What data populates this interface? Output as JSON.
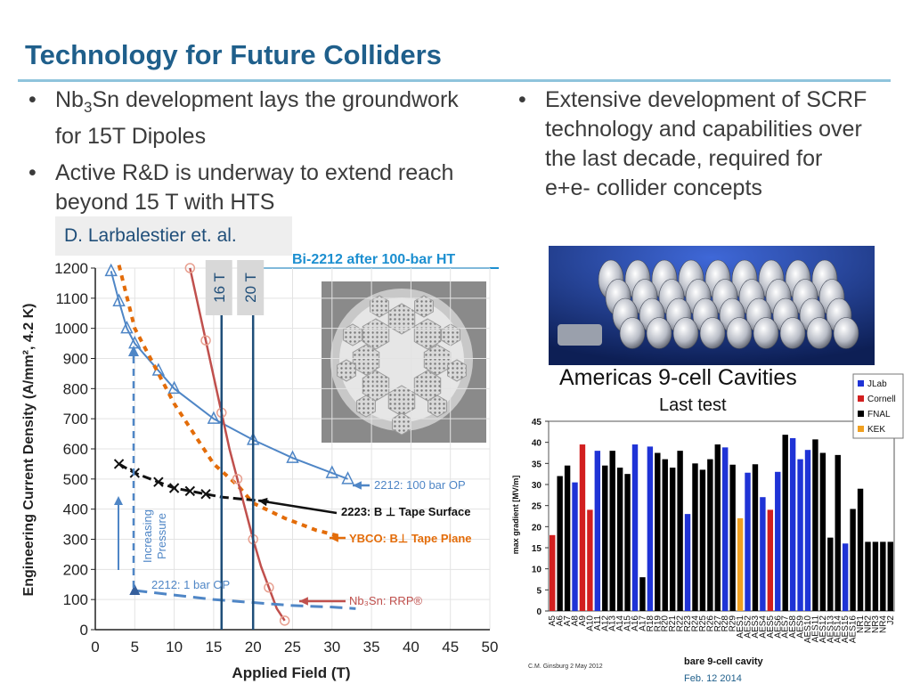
{
  "title": "Technology for Future Colliders",
  "left_bullets": [
    {
      "pre": "Nb",
      "sub": "3",
      "post": "Sn development lays the groundwork for 15T Dipoles"
    },
    {
      "pre": "Active R&D is underway to extend reach beyond 15 T with HTS",
      "sub": "",
      "post": ""
    }
  ],
  "right_bullets": [
    {
      "text": "Extensive development of SCRF technology and capabilities over the last decade, required for e+e- collider concepts"
    }
  ],
  "credit": "D. Larbalestier et. al.",
  "cable_label": "Bi-2212 after 100-bar HT",
  "footer": {
    "date": "Feb. 12 2014",
    "small_credit": "C.M. Ginsburg 2 May 2012"
  },
  "colors": {
    "title": "#1f5f8b",
    "blue_curve": "#4f86c6",
    "red_curve": "#c0504d",
    "orange_curve": "#e36c09",
    "field_line": "#1f4e79",
    "jlab": "#1f33d6",
    "cornell": "#d21f1f",
    "fnal": "#000000",
    "kek": "#f0a020"
  },
  "chart_data": [
    {
      "type": "line",
      "title": "",
      "xlabel": "Applied Field (T)",
      "ylabel": "Engineering Current Density (A/mm², 4.2 K)",
      "xlim": [
        0,
        50
      ],
      "ylim": [
        0,
        1200
      ],
      "xticks": [
        0,
        5,
        10,
        15,
        20,
        25,
        30,
        35,
        40,
        45,
        50
      ],
      "yticks": [
        0,
        100,
        200,
        300,
        400,
        500,
        600,
        700,
        800,
        900,
        1000,
        1100,
        1200
      ],
      "grid": true,
      "vertical_markers": [
        {
          "x": 16,
          "label": "16 T"
        },
        {
          "x": 20,
          "label": "20 T"
        }
      ],
      "pressure_label": "Increasing Pressure",
      "series": [
        {
          "name": "2212: 100 bar OP",
          "x": [
            2,
            3,
            4,
            5,
            8,
            10,
            15,
            20,
            25,
            30,
            32
          ],
          "y": [
            1190,
            1090,
            1000,
            950,
            860,
            800,
            700,
            630,
            570,
            520,
            500
          ]
        },
        {
          "name": "2223: B ⊥ Tape Surface",
          "x": [
            3,
            5,
            8,
            10,
            12,
            14,
            16,
            18,
            20,
            22
          ],
          "y": [
            550,
            520,
            490,
            470,
            460,
            450,
            440,
            435,
            430,
            425
          ]
        },
        {
          "name": "YBCO: B⊥ Tape Plane",
          "x": [
            3,
            5,
            8,
            10,
            13,
            15,
            18,
            20,
            24,
            28,
            31
          ],
          "y": [
            1210,
            1000,
            850,
            750,
            630,
            550,
            480,
            420,
            370,
            330,
            310
          ]
        },
        {
          "name": "Nb₃Sn: RRP®",
          "x": [
            12,
            13,
            14,
            15,
            16,
            17,
            18,
            19,
            20,
            21,
            22,
            23,
            24
          ],
          "y": [
            1200,
            1080,
            960,
            840,
            720,
            600,
            500,
            400,
            300,
            210,
            140,
            70,
            30
          ]
        },
        {
          "name": "2212: 1 bar OP",
          "x": [
            5,
            10,
            15,
            20,
            25,
            30,
            33
          ],
          "y": [
            130,
            115,
            100,
            90,
            80,
            75,
            70
          ]
        }
      ]
    },
    {
      "type": "bar",
      "title": "Americas 9-cell Cavities",
      "subtitle": "Last test",
      "xlabel": "bare 9-cell cavity",
      "ylabel": "max gradient [MV/m]",
      "ylim": [
        0,
        45
      ],
      "yticks": [
        0,
        5,
        10,
        15,
        20,
        25,
        30,
        35,
        40,
        45
      ],
      "legend": [
        "JLab",
        "Cornell",
        "FNAL",
        "KEK"
      ],
      "legend_position": "top-right",
      "categories": [
        "A5",
        "A6",
        "A7",
        "A8",
        "A9",
        "A10",
        "A11",
        "A12",
        "A13",
        "A14",
        "A15",
        "A16",
        "A17",
        "R18",
        "R19",
        "R20",
        "R21",
        "R22",
        "R23",
        "R24",
        "R25",
        "R26",
        "R27",
        "R28",
        "R29",
        "AES1",
        "AES2",
        "AES3",
        "AES4",
        "AES5",
        "AES6",
        "AES7",
        "AES8",
        "AES9",
        "AES10",
        "AES11",
        "AES12",
        "AES13",
        "AES14",
        "AES15",
        "AES16",
        "NR1",
        "NR2",
        "NR3",
        "NR4",
        "J2"
      ],
      "values": [
        18,
        32,
        34.5,
        30.5,
        39.5,
        24,
        38,
        34.5,
        38,
        34,
        32.5,
        39.5,
        8,
        39,
        37.5,
        36,
        34,
        38,
        23,
        35,
        33.5,
        36,
        39.5,
        38.8,
        34.7,
        22,
        32.8,
        34.8,
        27,
        24,
        33,
        41.8,
        41,
        36,
        38.2,
        40.7,
        37.5,
        17.4,
        37,
        16,
        24.2,
        29,
        16.4,
        16.4,
        16.4,
        16.4
      ],
      "colors_by_lab": [
        "Cornell",
        "FNAL",
        "FNAL",
        "JLab",
        "Cornell",
        "Cornell",
        "JLab",
        "FNAL",
        "FNAL",
        "FNAL",
        "FNAL",
        "JLab",
        "FNAL",
        "JLab",
        "FNAL",
        "FNAL",
        "FNAL",
        "FNAL",
        "JLab",
        "FNAL",
        "FNAL",
        "FNAL",
        "FNAL",
        "JLab",
        "FNAL",
        "KEK",
        "JLab",
        "FNAL",
        "JLab",
        "Cornell",
        "JLab",
        "FNAL",
        "JLab",
        "JLab",
        "JLab",
        "FNAL",
        "FNAL",
        "FNAL",
        "FNAL",
        "JLab",
        "FNAL",
        "FNAL",
        "FNAL",
        "FNAL",
        "FNAL",
        "FNAL"
      ]
    }
  ]
}
